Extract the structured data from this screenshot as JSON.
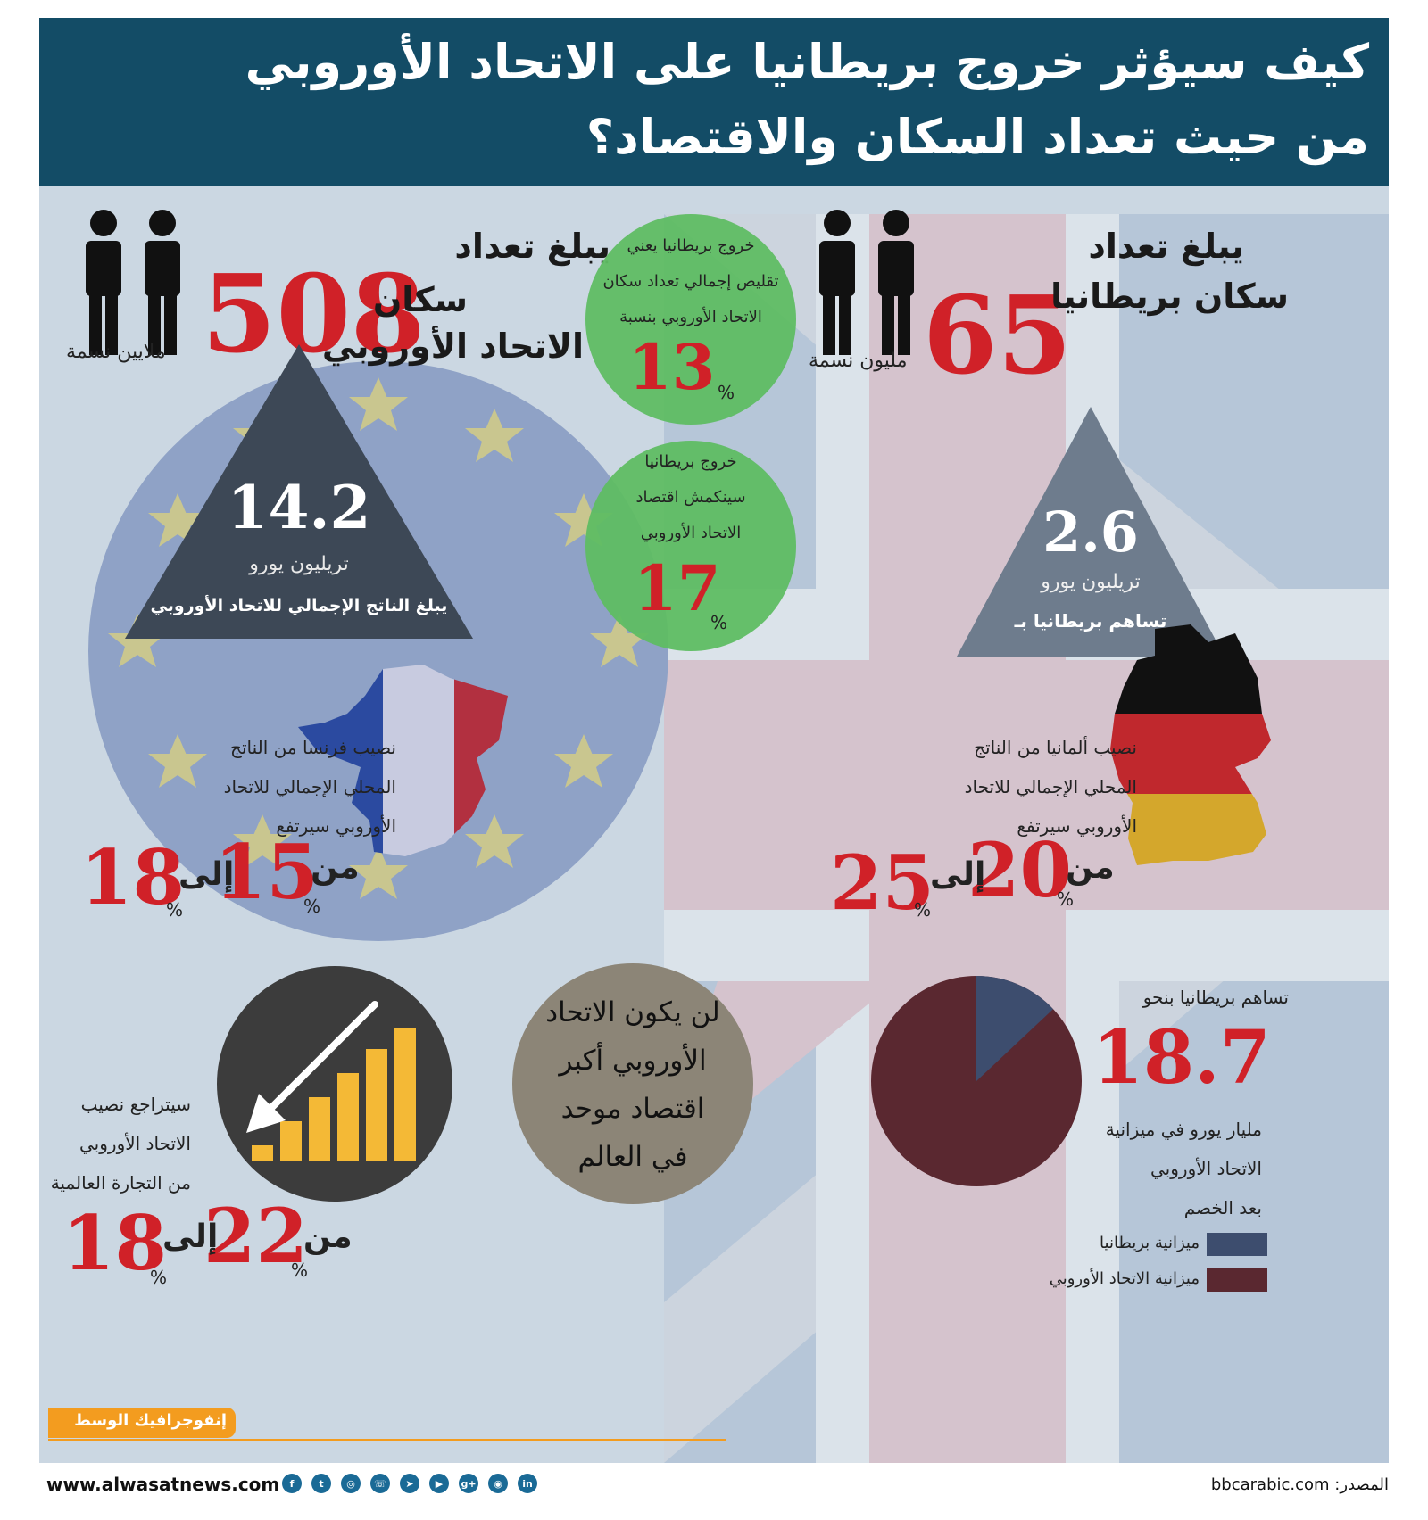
{
  "title": {
    "line1": "كيف سيؤثر خروج بريطانيا على الاتحاد الأوروبي",
    "line2": "من حيث تعداد السكان والاقتصاد؟"
  },
  "eu_population": {
    "label_line1": "يبلغ تعداد",
    "label_line2": "سكان",
    "label_line3": "الاتحاد الأوروبي",
    "value": "508",
    "unit": "ملايين نسمة"
  },
  "uk_population": {
    "label_line1": "يبلغ تعداد",
    "label_line2": "سكان بريطانيا",
    "value": "65",
    "unit": "مليون نسمة"
  },
  "population_circle": {
    "line1": "خروج بريطانيا يعني",
    "line2": "تقليص إجمالي تعداد سكان",
    "line3": "الاتحاد الأوروبي بنسبة",
    "value": "13",
    "percent": "%"
  },
  "economy_circle": {
    "line1": "خروج بريطانيا",
    "line2": "سينكمش اقتصاد",
    "line3": "الاتحاد الأوروبي",
    "value": "17",
    "percent": "%"
  },
  "eu_gdp": {
    "value": "14.2",
    "unit": "تريليون يورو",
    "caption": "يبلغ الناتج الإجمالي للاتحاد الأوروبي"
  },
  "uk_gdp": {
    "value": "2.6",
    "unit": "تريليون يورو",
    "caption": "تساهم بريطانيا بـ"
  },
  "france": {
    "line1": "نصيب فرنسا من الناتج",
    "line2": "المحلي الإجمالي للاتحاد",
    "line3": "الأوروبي سيرتفع",
    "from_word": "من",
    "from_value": "15",
    "to_word": "إلى",
    "to_value": "18",
    "percent": "%"
  },
  "germany": {
    "line1": "نصيب ألمانيا من الناتج",
    "line2": "المحلي الإجمالي للاتحاد",
    "line3": "الأوروبي سيرتفع",
    "from_word": "من",
    "from_value": "20",
    "to_word": "إلى",
    "to_value": "25",
    "percent": "%"
  },
  "trade": {
    "line1": "سيتراجع نصيب",
    "line2": "الاتحاد الأوروبي",
    "line3": "من التجارة العالمية",
    "from_word": "من",
    "from_value": "22",
    "to_word": "إلى",
    "to_value": "18",
    "percent": "%",
    "bar_levels": [
      0.12,
      0.3,
      0.48,
      0.66,
      0.84,
      1.0
    ]
  },
  "largest_economy": {
    "line1": "لن يكون الاتحاد",
    "line2": "الأوروبي أكبر",
    "line3": "اقتصاد موحد",
    "line4": "في العالم"
  },
  "budget": {
    "intro": "تساهم بريطانيا بنحو",
    "value": "18.7",
    "line1": "مليار يورو في ميزانية",
    "line2": "الاتحاد الأوروبي",
    "line3": "بعد الخصم",
    "uk_share": 0.13,
    "legend_uk": "ميزانية بريطانيا",
    "legend_eu": "ميزانية الاتحاد الأوروبي",
    "uk_color": "#3d4d6e",
    "eu_color": "#5a2830"
  },
  "footer": {
    "brand": "إنفوجرافيك الوسط",
    "website": "www.alwasatnews.com",
    "source": "المصدر: bbcarabic.com",
    "social": [
      "facebook-icon",
      "twitter-icon",
      "instagram-icon",
      "whatsapp-icon",
      "telegram-icon",
      "youtube-icon",
      "googleplus-icon",
      "rss-icon",
      "linkedin-icon"
    ]
  },
  "colors": {
    "header": "#134c66",
    "accent_red": "#d02128",
    "circle_green": "#5fbd63",
    "triangle_dark": "#3d4856"
  }
}
